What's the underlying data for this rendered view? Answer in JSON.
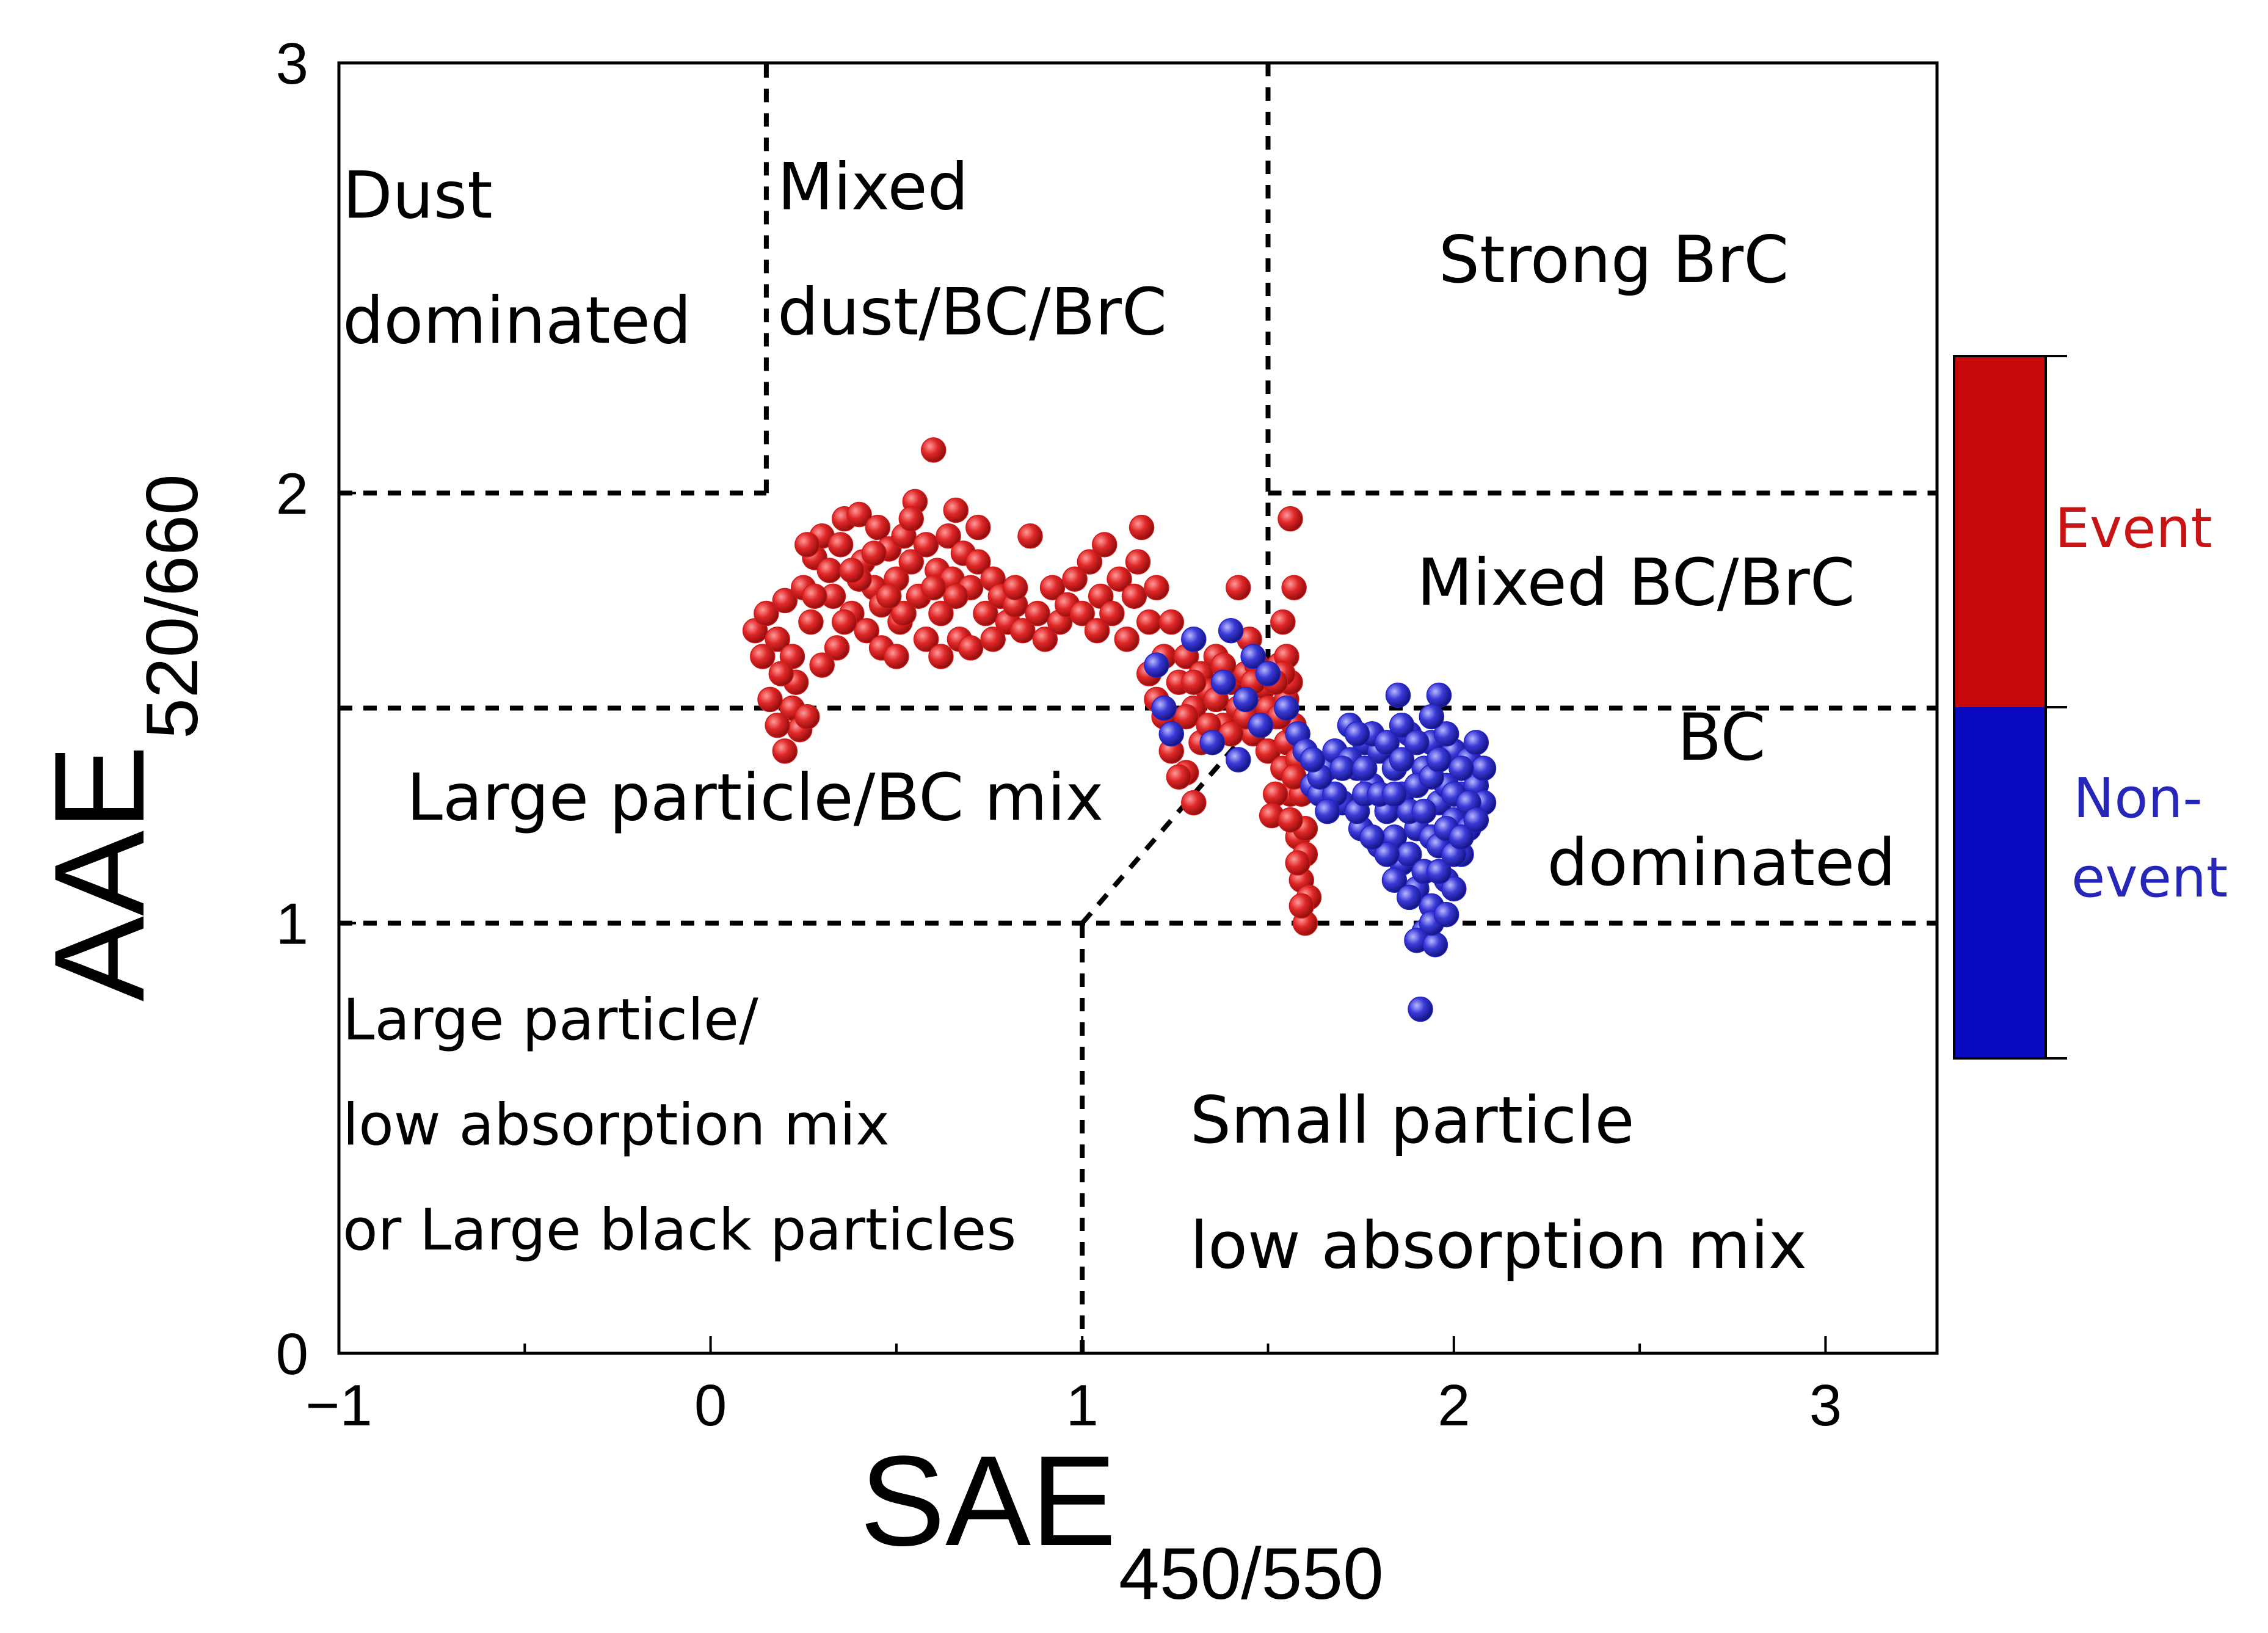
{
  "chart_data": {
    "type": "scatter",
    "title": "",
    "xlabel": "SAE",
    "xlabel_sub": "450/550",
    "ylabel": "AAE",
    "ylabel_sub": "520/660",
    "xlim": [
      -1,
      3.3
    ],
    "ylim": [
      0,
      3
    ],
    "xticks": [
      -1,
      0,
      1,
      2,
      3
    ],
    "xtick_labels": [
      "−1",
      "0",
      "1",
      "2",
      "3"
    ],
    "yticks": [
      0,
      1,
      2,
      3
    ],
    "ytick_labels": [
      "0",
      "1",
      "2",
      "3"
    ],
    "grid": false,
    "boundaries": [
      [
        [
          -1,
          2
        ],
        [
          0.15,
          2
        ]
      ],
      [
        [
          0.15,
          2
        ],
        [
          0.15,
          3
        ]
      ],
      [
        [
          1.5,
          3
        ],
        [
          1.5,
          1.5
        ]
      ],
      [
        [
          1.5,
          2
        ],
        [
          3.3,
          2
        ]
      ],
      [
        [
          -1,
          1.5
        ],
        [
          3.3,
          1.5
        ]
      ],
      [
        [
          -1,
          1
        ],
        [
          3.3,
          1
        ]
      ],
      [
        [
          1,
          0
        ],
        [
          1,
          1
        ]
      ],
      [
        [
          1,
          1
        ],
        [
          1.5,
          1.5
        ]
      ]
    ],
    "regions": [
      {
        "lines": [
          "Dust",
          "dominated"
        ],
        "x": -0.99,
        "y": 2.64,
        "align": "start",
        "size": "large"
      },
      {
        "lines": [
          "Mixed",
          "dust/BC/BrC"
        ],
        "x": 0.18,
        "y": 2.66,
        "align": "start",
        "size": "large"
      },
      {
        "lines": [
          "Strong BrC"
        ],
        "x": 2.43,
        "y": 2.49,
        "align": "middle",
        "size": "large"
      },
      {
        "lines": [
          "Mixed BC/BrC"
        ],
        "x": 2.49,
        "y": 1.74,
        "align": "middle",
        "size": "large"
      },
      {
        "lines": [
          "BC",
          "dominated"
        ],
        "x": 2.72,
        "y": 1.38,
        "align": "middle",
        "size": "large"
      },
      {
        "lines": [
          "Large particle/BC mix"
        ],
        "x": 0.12,
        "y": 1.24,
        "align": "middle",
        "size": "large"
      },
      {
        "lines": [
          "Large particle/",
          "low absorption mix",
          "or Large black particles"
        ],
        "x": -0.99,
        "y": 0.73,
        "align": "start",
        "size": "small"
      },
      {
        "lines": [
          "Small particle",
          "low absorption mix"
        ],
        "x": 1.29,
        "y": 0.49,
        "align": "start",
        "size": "large"
      }
    ],
    "series": [
      {
        "name": "Event",
        "color": "#d11a1a",
        "points": [
          [
            0.12,
            1.68
          ],
          [
            0.15,
            1.72
          ],
          [
            0.18,
            1.66
          ],
          [
            0.2,
            1.75
          ],
          [
            0.22,
            1.62
          ],
          [
            0.25,
            1.78
          ],
          [
            0.27,
            1.7
          ],
          [
            0.28,
            1.85
          ],
          [
            0.3,
            1.9
          ],
          [
            0.32,
            1.82
          ],
          [
            0.33,
            1.76
          ],
          [
            0.35,
            1.88
          ],
          [
            0.36,
            1.94
          ],
          [
            0.38,
            1.72
          ],
          [
            0.4,
            1.95
          ],
          [
            0.41,
            1.84
          ],
          [
            0.42,
            1.68
          ],
          [
            0.44,
            1.78
          ],
          [
            0.45,
            1.92
          ],
          [
            0.46,
            1.74
          ],
          [
            0.48,
            1.87
          ],
          [
            0.5,
            1.8
          ],
          [
            0.51,
            1.7
          ],
          [
            0.52,
            1.9
          ],
          [
            0.54,
            1.84
          ],
          [
            0.55,
            1.98
          ],
          [
            0.56,
            1.76
          ],
          [
            0.58,
            1.88
          ],
          [
            0.6,
            2.1
          ],
          [
            0.61,
            1.82
          ],
          [
            0.62,
            1.72
          ],
          [
            0.64,
            1.9
          ],
          [
            0.65,
            1.8
          ],
          [
            0.66,
            1.96
          ],
          [
            0.67,
            1.66
          ],
          [
            0.68,
            1.86
          ],
          [
            0.7,
            1.78
          ],
          [
            0.72,
            1.84
          ],
          [
            0.74,
            1.72
          ],
          [
            0.76,
            1.8
          ],
          [
            0.78,
            1.76
          ],
          [
            0.8,
            1.7
          ],
          [
            0.82,
            1.74
          ],
          [
            0.84,
            1.68
          ],
          [
            0.86,
            1.9
          ],
          [
            0.88,
            1.72
          ],
          [
            0.9,
            1.66
          ],
          [
            0.92,
            1.78
          ],
          [
            0.94,
            1.7
          ],
          [
            0.96,
            1.74
          ],
          [
            0.98,
            1.8
          ],
          [
            1.0,
            1.72
          ],
          [
            1.02,
            1.84
          ],
          [
            1.04,
            1.68
          ],
          [
            1.05,
            1.76
          ],
          [
            1.06,
            1.88
          ],
          [
            1.08,
            1.72
          ],
          [
            1.1,
            1.8
          ],
          [
            1.12,
            1.66
          ],
          [
            1.14,
            1.76
          ],
          [
            1.15,
            1.84
          ],
          [
            1.16,
            1.92
          ],
          [
            1.18,
            1.7
          ],
          [
            1.2,
            1.78
          ],
          [
            1.22,
            1.62
          ],
          [
            1.24,
            1.7
          ],
          [
            1.26,
            1.56
          ],
          [
            1.28,
            1.62
          ],
          [
            1.3,
            1.5
          ],
          [
            1.32,
            1.58
          ],
          [
            1.34,
            1.54
          ],
          [
            1.36,
            1.62
          ],
          [
            1.38,
            1.46
          ],
          [
            1.4,
            1.56
          ],
          [
            1.42,
            1.5
          ],
          [
            1.44,
            1.58
          ],
          [
            1.46,
            1.44
          ],
          [
            1.48,
            1.52
          ],
          [
            1.5,
            1.4
          ],
          [
            1.52,
            1.48
          ],
          [
            1.54,
            1.36
          ],
          [
            1.55,
            1.42
          ],
          [
            1.56,
            1.3
          ],
          [
            1.57,
            1.78
          ],
          [
            1.58,
            1.2
          ],
          [
            1.59,
            1.1
          ],
          [
            1.6,
            1.0
          ],
          [
            1.61,
            1.06
          ],
          [
            1.56,
            1.94
          ],
          [
            1.54,
            1.7
          ],
          [
            1.53,
            1.6
          ],
          [
            1.52,
            1.3
          ],
          [
            1.51,
            1.25
          ],
          [
            1.3,
            1.28
          ],
          [
            1.28,
            1.35
          ],
          [
            1.32,
            1.42
          ],
          [
            1.42,
            1.78
          ],
          [
            1.45,
            1.66
          ],
          [
            1.47,
            1.6
          ],
          [
            1.49,
            1.55
          ],
          [
            0.22,
            1.5
          ],
          [
            0.24,
            1.45
          ],
          [
            0.2,
            1.4
          ],
          [
            0.16,
            1.52
          ],
          [
            0.18,
            1.46
          ],
          [
            0.23,
            1.56
          ],
          [
            0.26,
            1.48
          ],
          [
            0.19,
            1.58
          ],
          [
            0.34,
            1.64
          ],
          [
            0.3,
            1.6
          ],
          [
            0.46,
            1.64
          ],
          [
            0.5,
            1.62
          ],
          [
            0.58,
            1.66
          ],
          [
            0.62,
            1.62
          ],
          [
            0.7,
            1.64
          ],
          [
            0.76,
            1.66
          ],
          [
            0.52,
            1.72
          ],
          [
            0.4,
            1.8
          ],
          [
            0.28,
            1.76
          ],
          [
            0.14,
            1.62
          ],
          [
            0.36,
            1.7
          ],
          [
            0.44,
            1.86
          ],
          [
            0.54,
            1.94
          ],
          [
            0.66,
            1.76
          ],
          [
            0.72,
            1.92
          ],
          [
            0.82,
            1.78
          ],
          [
            0.6,
            1.78
          ],
          [
            0.48,
            1.76
          ],
          [
            0.38,
            1.82
          ],
          [
            0.26,
            1.88
          ],
          [
            1.18,
            1.58
          ],
          [
            1.2,
            1.52
          ],
          [
            1.22,
            1.48
          ],
          [
            1.24,
            1.4
          ],
          [
            1.26,
            1.34
          ],
          [
            1.28,
            1.48
          ],
          [
            1.3,
            1.56
          ],
          [
            1.34,
            1.46
          ],
          [
            1.36,
            1.52
          ],
          [
            1.38,
            1.6
          ],
          [
            1.4,
            1.44
          ],
          [
            1.44,
            1.48
          ],
          [
            1.46,
            1.56
          ],
          [
            1.48,
            1.46
          ],
          [
            1.5,
            1.5
          ],
          [
            1.55,
            1.52
          ],
          [
            1.57,
            1.46
          ],
          [
            1.58,
            1.38
          ],
          [
            1.59,
            1.3
          ],
          [
            1.6,
            1.22
          ],
          [
            1.6,
            1.16
          ],
          [
            1.59,
            1.04
          ],
          [
            1.58,
            1.14
          ],
          [
            1.56,
            1.24
          ],
          [
            1.57,
            1.34
          ],
          [
            1.55,
            1.62
          ],
          [
            1.56,
            1.56
          ],
          [
            1.54,
            1.58
          ],
          [
            1.53,
            1.48
          ],
          [
            1.52,
            1.56
          ]
        ]
      },
      {
        "name": "Non-event",
        "color": "#2323c8",
        "points": [
          [
            1.2,
            1.6
          ],
          [
            1.22,
            1.5
          ],
          [
            1.24,
            1.44
          ],
          [
            1.3,
            1.66
          ],
          [
            1.35,
            1.42
          ],
          [
            1.38,
            1.56
          ],
          [
            1.4,
            1.68
          ],
          [
            1.42,
            1.38
          ],
          [
            1.44,
            1.52
          ],
          [
            1.46,
            1.62
          ],
          [
            1.48,
            1.46
          ],
          [
            1.5,
            1.58
          ],
          [
            1.55,
            1.5
          ],
          [
            1.58,
            1.44
          ],
          [
            1.62,
            1.32
          ],
          [
            1.64,
            1.3
          ],
          [
            1.66,
            1.36
          ],
          [
            1.68,
            1.4
          ],
          [
            1.7,
            1.28
          ],
          [
            1.72,
            1.46
          ],
          [
            1.74,
            1.36
          ],
          [
            1.75,
            1.22
          ],
          [
            1.76,
            1.42
          ],
          [
            1.78,
            1.32
          ],
          [
            1.8,
            1.18
          ],
          [
            1.8,
            1.4
          ],
          [
            1.82,
            1.26
          ],
          [
            1.84,
            1.36
          ],
          [
            1.85,
            1.53
          ],
          [
            1.86,
            1.14
          ],
          [
            1.86,
            1.3
          ],
          [
            1.88,
            1.44
          ],
          [
            1.9,
            1.22
          ],
          [
            1.9,
            1.08
          ],
          [
            1.92,
            1.36
          ],
          [
            1.92,
            0.98
          ],
          [
            1.94,
            1.2
          ],
          [
            1.94,
            1.42
          ],
          [
            1.96,
            1.28
          ],
          [
            1.96,
            1.53
          ],
          [
            1.98,
            1.1
          ],
          [
            1.98,
            1.32
          ],
          [
            2.0,
            1.24
          ],
          [
            2.0,
            1.4
          ],
          [
            2.02,
            1.16
          ],
          [
            2.02,
            1.3
          ],
          [
            2.04,
            1.38
          ],
          [
            2.04,
            1.22
          ],
          [
            2.06,
            1.32
          ],
          [
            2.06,
            1.42
          ],
          [
            2.08,
            1.28
          ],
          [
            2.08,
            1.36
          ],
          [
            1.72,
            1.38
          ],
          [
            1.74,
            1.26
          ],
          [
            1.76,
            1.3
          ],
          [
            1.78,
            1.44
          ],
          [
            1.8,
            1.3
          ],
          [
            1.82,
            1.42
          ],
          [
            1.84,
            1.2
          ],
          [
            1.86,
            1.38
          ],
          [
            1.88,
            1.26
          ],
          [
            1.88,
            1.16
          ],
          [
            1.9,
            1.32
          ],
          [
            1.92,
            1.12
          ],
          [
            1.92,
            1.26
          ],
          [
            1.94,
            1.34
          ],
          [
            1.94,
            1.04
          ],
          [
            1.96,
            1.18
          ],
          [
            1.96,
            1.38
          ],
          [
            1.98,
            1.22
          ],
          [
            1.98,
            1.44
          ],
          [
            2.0,
            1.08
          ],
          [
            2.0,
            1.3
          ],
          [
            2.02,
            1.36
          ],
          [
            2.04,
            1.28
          ],
          [
            1.9,
            0.96
          ],
          [
            1.95,
            0.95
          ],
          [
            1.91,
            0.8
          ],
          [
            1.94,
            1.0
          ],
          [
            1.98,
            1.02
          ],
          [
            1.68,
            1.3
          ],
          [
            1.7,
            1.36
          ],
          [
            1.66,
            1.26
          ],
          [
            1.64,
            1.34
          ],
          [
            1.6,
            1.4
          ],
          [
            1.62,
            1.38
          ],
          [
            1.86,
            1.46
          ],
          [
            1.9,
            1.42
          ],
          [
            1.94,
            1.48
          ],
          [
            1.84,
            1.1
          ],
          [
            1.82,
            1.16
          ],
          [
            1.78,
            1.2
          ],
          [
            1.96,
            1.12
          ],
          [
            2.0,
            1.16
          ],
          [
            2.02,
            1.2
          ],
          [
            2.06,
            1.24
          ],
          [
            1.88,
            1.06
          ],
          [
            1.84,
            1.3
          ],
          [
            1.76,
            1.36
          ],
          [
            1.74,
            1.44
          ]
        ]
      }
    ],
    "legend": {
      "position": "right",
      "labels": [
        "Event",
        "Non-event"
      ],
      "colors": [
        "#c80a0a",
        "#0a0ac0"
      ]
    }
  },
  "legend": {
    "event_label": "Event",
    "nonevent_label_1": "Non-",
    "nonevent_label_2": "event"
  },
  "axes": {
    "x_title": "SAE",
    "x_sub": "450/550",
    "y_title": "AAE",
    "y_sub": "520/660"
  }
}
